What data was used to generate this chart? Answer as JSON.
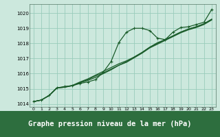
{
  "bg_color": "#cce8dd",
  "plot_bg_color": "#cce8dd",
  "grid_color": "#99ccbb",
  "line_color": "#1a5c2a",
  "title": "Graphe pression niveau de la mer (hPa)",
  "title_fontsize": 7.5,
  "xlim": [
    -0.5,
    23.5
  ],
  "ylim": [
    1013.8,
    1020.6
  ],
  "yticks": [
    1014,
    1015,
    1016,
    1017,
    1018,
    1019,
    1020
  ],
  "xticks": [
    0,
    1,
    2,
    3,
    4,
    5,
    6,
    7,
    8,
    9,
    10,
    11,
    12,
    13,
    14,
    15,
    16,
    17,
    18,
    19,
    20,
    21,
    22,
    23
  ],
  "series1_x": [
    0,
    1,
    2,
    3,
    4,
    5,
    6,
    7,
    8,
    9,
    10,
    11,
    12,
    13,
    14,
    15,
    16,
    17,
    18,
    19,
    20,
    21,
    22,
    23
  ],
  "series1_y": [
    1014.15,
    1014.25,
    1014.55,
    1015.05,
    1015.15,
    1015.2,
    1015.35,
    1015.45,
    1015.6,
    1016.1,
    1016.8,
    1018.05,
    1018.75,
    1019.0,
    1019.0,
    1018.85,
    1018.35,
    1018.25,
    1018.75,
    1019.05,
    1019.1,
    1019.25,
    1019.4,
    1020.25
  ],
  "series2_x": [
    0,
    1,
    2,
    3,
    4,
    5,
    6,
    7,
    8,
    9,
    10,
    11,
    12,
    13,
    14,
    15,
    16,
    17,
    18,
    19,
    20,
    21,
    22,
    23
  ],
  "series2_y": [
    1014.15,
    1014.25,
    1014.55,
    1015.05,
    1015.1,
    1015.2,
    1015.4,
    1015.55,
    1015.75,
    1016.0,
    1016.25,
    1016.55,
    1016.8,
    1017.1,
    1017.4,
    1017.75,
    1018.05,
    1018.25,
    1018.5,
    1018.75,
    1018.95,
    1019.1,
    1019.3,
    1019.6
  ],
  "series3_x": [
    0,
    1,
    2,
    3,
    4,
    5,
    6,
    7,
    8,
    9,
    10,
    11,
    12,
    13,
    14,
    15,
    16,
    17,
    18,
    19,
    20,
    21,
    22,
    23
  ],
  "series3_y": [
    1014.15,
    1014.25,
    1014.55,
    1015.05,
    1015.1,
    1015.2,
    1015.4,
    1015.6,
    1015.85,
    1016.05,
    1016.3,
    1016.55,
    1016.75,
    1017.05,
    1017.35,
    1017.7,
    1017.95,
    1018.2,
    1018.45,
    1018.7,
    1018.9,
    1019.05,
    1019.25,
    1019.55
  ],
  "series4_x": [
    0,
    1,
    2,
    3,
    4,
    5,
    6,
    7,
    8,
    9,
    10,
    11,
    12,
    13,
    14,
    15,
    16,
    17,
    18,
    19,
    20,
    21,
    22,
    23
  ],
  "series4_y": [
    1014.15,
    1014.25,
    1014.55,
    1015.05,
    1015.12,
    1015.22,
    1015.45,
    1015.65,
    1015.9,
    1016.15,
    1016.4,
    1016.65,
    1016.85,
    1017.1,
    1017.4,
    1017.75,
    1018.0,
    1018.25,
    1018.5,
    1018.75,
    1018.95,
    1019.1,
    1019.3,
    1019.6
  ]
}
